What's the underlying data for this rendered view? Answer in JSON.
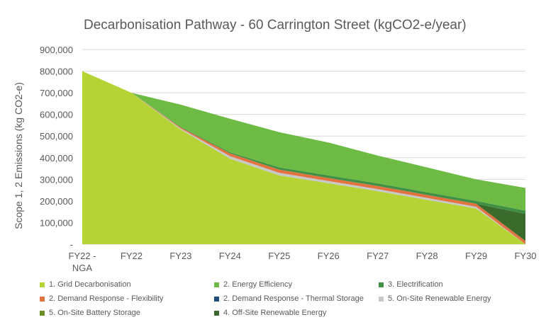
{
  "chart_data": {
    "type": "area",
    "title": "Decarbonisation Pathway - 60 Carrington Street (kgCO2-e/year)",
    "ylabel": "Scope 1, 2 Emissions (kg CO2-e)",
    "xlabel": "",
    "categories": [
      "FY22 - NGA",
      "FY22",
      "FY23",
      "FY24",
      "FY25",
      "FY26",
      "FY27",
      "FY28",
      "FY29",
      "FY30"
    ],
    "ylim": [
      0,
      900000
    ],
    "yticks": [
      {
        "value": 0,
        "label": "-"
      },
      {
        "value": 100000,
        "label": "100,000"
      },
      {
        "value": 200000,
        "label": "200,000"
      },
      {
        "value": 300000,
        "label": "300,000"
      },
      {
        "value": 400000,
        "label": "400,000"
      },
      {
        "value": 500000,
        "label": "500,000"
      },
      {
        "value": 600000,
        "label": "600,000"
      },
      {
        "value": 700000,
        "label": "700,000"
      },
      {
        "value": 800000,
        "label": "800,000"
      },
      {
        "value": 900000,
        "label": "900,000"
      }
    ],
    "stacked": true,
    "grid": true,
    "legend_position": "bottom",
    "series": [
      {
        "name": "1. Grid Decarbonisation",
        "color": "#b5d334",
        "values": [
          800000,
          700000,
          530000,
          395000,
          318000,
          282000,
          245000,
          205000,
          165000,
          0
        ]
      },
      {
        "name": "5. On-Site Renewable Energy",
        "color": "#c8c8c8",
        "values": [
          0,
          0,
          5000,
          12000,
          12000,
          10000,
          10000,
          9000,
          8000,
          0
        ]
      },
      {
        "name": "2. Demand Response - Flexibility",
        "color": "#e2723f",
        "values": [
          0,
          0,
          5000,
          13000,
          15000,
          14000,
          14000,
          14000,
          14000,
          15000
        ]
      },
      {
        "name": "5. On-Site Battery Storage",
        "color": "#6b8e23",
        "values": [
          0,
          0,
          0,
          0,
          0,
          0,
          0,
          0,
          0,
          0
        ]
      },
      {
        "name": "2. Demand Response - Thermal Storage",
        "color": "#1f4e79",
        "values": [
          0,
          0,
          0,
          0,
          0,
          0,
          0,
          0,
          0,
          0
        ]
      },
      {
        "name": "4. Off-Site Renewable Energy",
        "color": "#3a6b2c",
        "values": [
          0,
          0,
          0,
          0,
          0,
          0,
          0,
          0,
          0,
          125000
        ]
      },
      {
        "name": "3. Electrification",
        "color": "#3f8f44",
        "values": [
          0,
          0,
          2000,
          5000,
          10000,
          12000,
          12000,
          12000,
          13000,
          15000
        ]
      },
      {
        "name": "2. Energy Efficiency",
        "color": "#6dbb45",
        "values": [
          0,
          0,
          103000,
          155000,
          163000,
          152000,
          129000,
          115000,
          100000,
          105000
        ]
      }
    ],
    "legend_order": [
      [
        "1. Grid Decarbonisation",
        "2. Energy Efficiency",
        "3. Electrification"
      ],
      [
        "2. Demand Response - Flexibility",
        "2. Demand Response - Thermal Storage",
        "5. On-Site Renewable Energy"
      ],
      [
        "5. On-Site Battery Storage",
        "4. Off-Site Renewable Energy"
      ]
    ],
    "legend_colors": {
      "1. Grid Decarbonisation": "#b5d334",
      "2. Energy Efficiency": "#6dbb45",
      "3. Electrification": "#3f8f44",
      "2. Demand Response - Flexibility": "#e2723f",
      "2. Demand Response - Thermal Storage": "#1f4e79",
      "5. On-Site Renewable Energy": "#c8c8c8",
      "5. On-Site Battery Storage": "#6b8e23",
      "4. Off-Site Renewable Energy": "#3a6b2c"
    }
  }
}
